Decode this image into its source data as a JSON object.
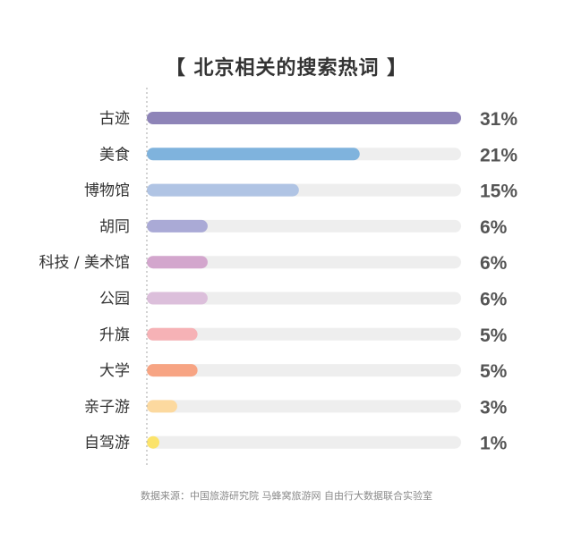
{
  "title": "【 北京相关的搜索热词 】",
  "source_note": "数据来源：中国旅游研究院 马蜂窝旅游网 自由行大数据联合实验室",
  "chart_data": {
    "type": "bar",
    "orientation": "horizontal",
    "categories": [
      "古迹",
      "美食",
      "博物馆",
      "胡同",
      "科技 / 美术馆",
      "公园",
      "升旗",
      "大学",
      "亲子游",
      "自驾游"
    ],
    "values": [
      31,
      21,
      15,
      6,
      6,
      6,
      5,
      5,
      3,
      1
    ],
    "value_labels": [
      "31%",
      "21%",
      "15%",
      "6%",
      "6%",
      "6%",
      "5%",
      "5%",
      "3%",
      "1%"
    ],
    "xlim": [
      0,
      31
    ],
    "colors": [
      "#8e84b8",
      "#7fb3dd",
      "#b0c4e4",
      "#aaaad6",
      "#d3a6cd",
      "#dcbfdb",
      "#f6b2b6",
      "#f7a483",
      "#fcd99f",
      "#fbe36b"
    ],
    "track_color": "#eeeeee",
    "axis_line": "dotted",
    "grid": false
  }
}
